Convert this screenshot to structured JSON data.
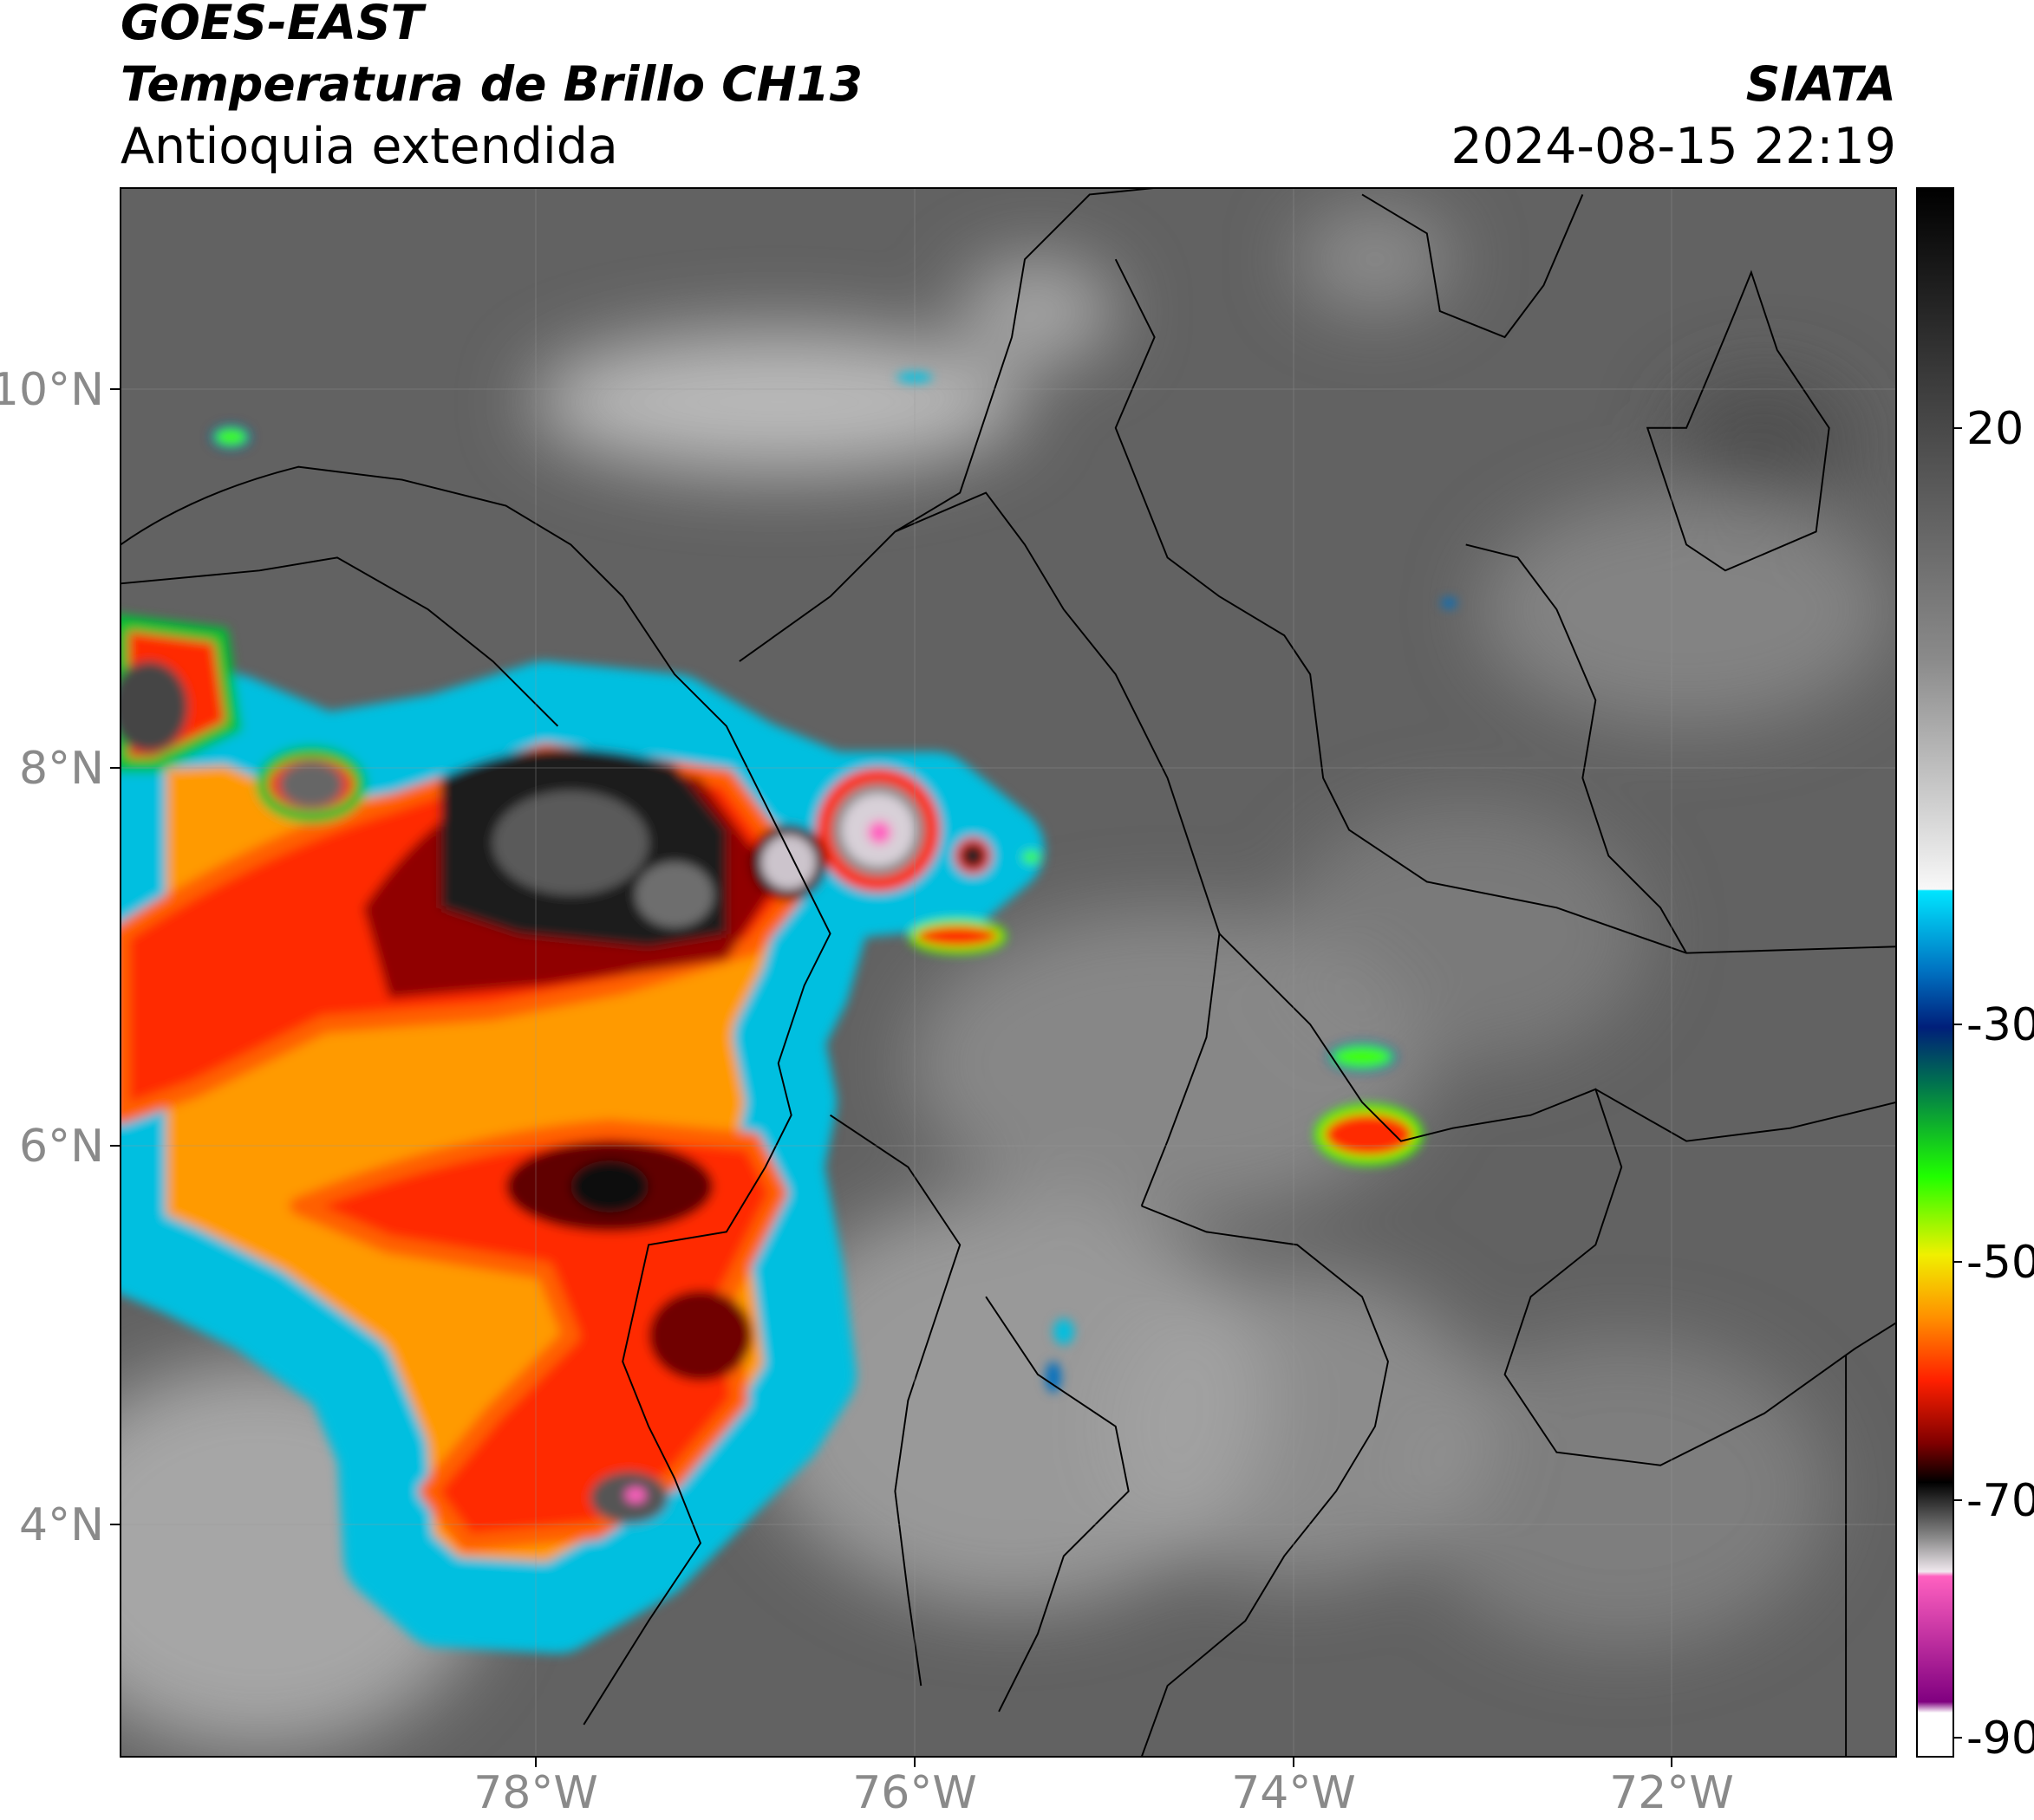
{
  "header": {
    "title": "GOES-EAST",
    "subtitle": "Temperatura de Brillo CH13",
    "region": "Antioquia extendida",
    "source": "SIATA",
    "timestamp": "2024-08-15 22:19"
  },
  "map": {
    "lat_labels": [
      "10°N",
      "8°N",
      "6°N",
      "4°N"
    ],
    "lon_labels": [
      "78°W",
      "76°W",
      "74°W",
      "72°W"
    ]
  },
  "colorbar": {
    "ticks": [
      20,
      -30,
      -50,
      -70,
      -90
    ]
  }
}
